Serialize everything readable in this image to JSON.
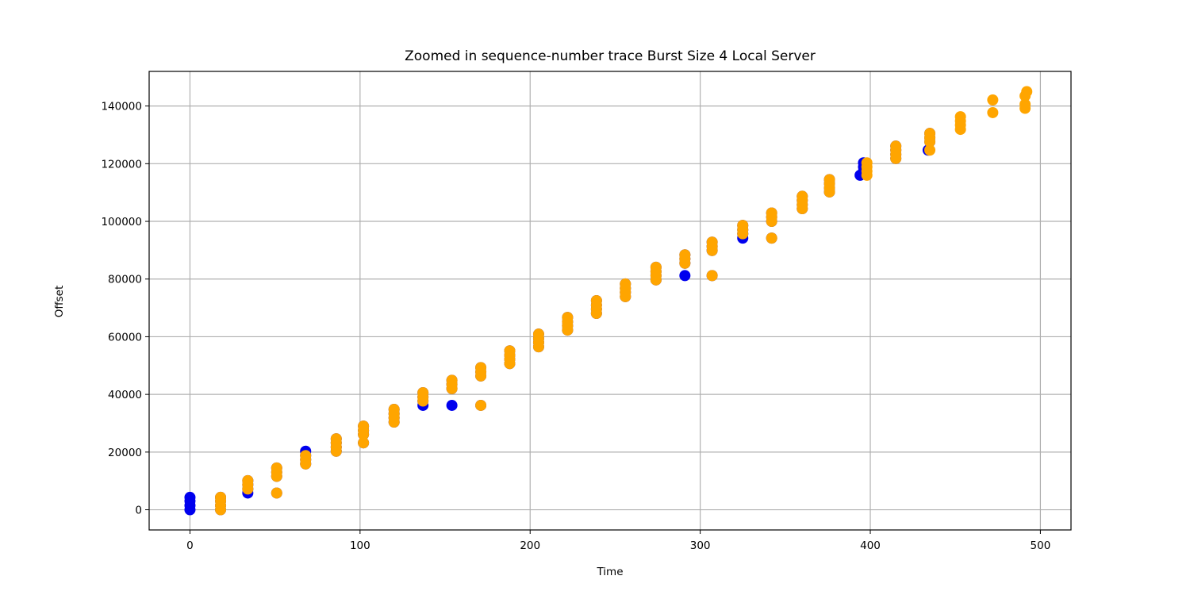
{
  "chart_data": {
    "type": "scatter",
    "title": "Zoomed in sequence-number trace Burst Size 4 Local Server",
    "xlabel": "Time",
    "ylabel": "Offset",
    "xlim": [
      -24,
      518
    ],
    "ylim": [
      -7000,
      152000
    ],
    "xticks": [
      0,
      100,
      200,
      300,
      400,
      500
    ],
    "yticks": [
      0,
      20000,
      40000,
      60000,
      80000,
      100000,
      120000,
      140000
    ],
    "grid": true,
    "legend": false,
    "series": [
      {
        "color": "#0000ee",
        "points": [
          [
            0,
            0
          ],
          [
            0,
            1500
          ],
          [
            0,
            3000
          ],
          [
            0,
            4300
          ],
          [
            18,
            0
          ],
          [
            18,
            1500
          ],
          [
            18,
            3000
          ],
          [
            18,
            4300
          ],
          [
            34,
            5800
          ],
          [
            34,
            7200
          ],
          [
            34,
            8700
          ],
          [
            34,
            10100
          ],
          [
            51,
            11600
          ],
          [
            51,
            13000
          ],
          [
            51,
            14500
          ],
          [
            51,
            5800
          ],
          [
            68,
            15900
          ],
          [
            68,
            17400
          ],
          [
            68,
            18800
          ],
          [
            68,
            20300
          ],
          [
            86,
            20300
          ],
          [
            86,
            21700
          ],
          [
            86,
            23200
          ],
          [
            86,
            24600
          ],
          [
            102,
            23200
          ],
          [
            102,
            26100
          ],
          [
            102,
            27500
          ],
          [
            102,
            29000
          ],
          [
            120,
            30400
          ],
          [
            120,
            31900
          ],
          [
            120,
            33300
          ],
          [
            120,
            34800
          ],
          [
            137,
            36200
          ],
          [
            137,
            37700
          ],
          [
            137,
            39100
          ],
          [
            137,
            40600
          ],
          [
            154,
            36200
          ],
          [
            154,
            42000
          ],
          [
            154,
            43500
          ],
          [
            154,
            44900
          ],
          [
            171,
            36200
          ],
          [
            171,
            46400
          ],
          [
            171,
            47800
          ],
          [
            171,
            49300
          ],
          [
            188,
            50700
          ],
          [
            188,
            52200
          ],
          [
            188,
            53600
          ],
          [
            188,
            55100
          ],
          [
            205,
            56500
          ],
          [
            205,
            58000
          ],
          [
            205,
            59400
          ],
          [
            205,
            60900
          ],
          [
            222,
            62300
          ],
          [
            222,
            63800
          ],
          [
            222,
            65200
          ],
          [
            222,
            66700
          ],
          [
            239,
            68100
          ],
          [
            239,
            69600
          ],
          [
            239,
            71000
          ],
          [
            239,
            72500
          ],
          [
            256,
            73900
          ],
          [
            256,
            75400
          ],
          [
            256,
            76800
          ],
          [
            256,
            78300
          ],
          [
            274,
            79700
          ],
          [
            274,
            81200
          ],
          [
            274,
            82600
          ],
          [
            274,
            84100
          ],
          [
            291,
            81200
          ],
          [
            291,
            85500
          ],
          [
            291,
            87000
          ],
          [
            291,
            88400
          ],
          [
            307,
            81200
          ],
          [
            307,
            89900
          ],
          [
            307,
            91300
          ],
          [
            307,
            92800
          ],
          [
            325,
            94200
          ],
          [
            325,
            95700
          ],
          [
            325,
            97100
          ],
          [
            325,
            98600
          ],
          [
            342,
            94200
          ],
          [
            342,
            100000
          ],
          [
            342,
            101500
          ],
          [
            342,
            102900
          ],
          [
            360,
            104400
          ],
          [
            360,
            105800
          ],
          [
            360,
            107300
          ],
          [
            360,
            108700
          ],
          [
            376,
            110200
          ],
          [
            376,
            111600
          ],
          [
            376,
            113100
          ],
          [
            376,
            114500
          ],
          [
            394,
            116000
          ],
          [
            396,
            117400
          ],
          [
            396,
            118900
          ],
          [
            396,
            120300
          ],
          [
            415,
            121800
          ],
          [
            415,
            123200
          ],
          [
            415,
            124700
          ],
          [
            415,
            126100
          ],
          [
            434,
            124700
          ],
          [
            435,
            127600
          ],
          [
            435,
            129000
          ],
          [
            435,
            130500
          ]
        ]
      },
      {
        "color": "#ffa500",
        "points": [
          [
            18,
            0
          ],
          [
            18,
            1500
          ],
          [
            18,
            3000
          ],
          [
            18,
            4300
          ],
          [
            34,
            7200
          ],
          [
            34,
            8700
          ],
          [
            34,
            10100
          ],
          [
            51,
            5800
          ],
          [
            51,
            11600
          ],
          [
            51,
            13000
          ],
          [
            51,
            14500
          ],
          [
            68,
            15900
          ],
          [
            68,
            17400
          ],
          [
            68,
            18800
          ],
          [
            86,
            20300
          ],
          [
            86,
            21700
          ],
          [
            86,
            23200
          ],
          [
            86,
            24600
          ],
          [
            102,
            23200
          ],
          [
            102,
            26100
          ],
          [
            102,
            27500
          ],
          [
            102,
            29000
          ],
          [
            120,
            30400
          ],
          [
            120,
            31900
          ],
          [
            120,
            33300
          ],
          [
            120,
            34800
          ],
          [
            137,
            37700
          ],
          [
            137,
            39100
          ],
          [
            137,
            40600
          ],
          [
            154,
            42000
          ],
          [
            154,
            43500
          ],
          [
            154,
            44900
          ],
          [
            171,
            36200
          ],
          [
            171,
            46400
          ],
          [
            171,
            47800
          ],
          [
            171,
            49300
          ],
          [
            188,
            50700
          ],
          [
            188,
            52200
          ],
          [
            188,
            53600
          ],
          [
            188,
            55100
          ],
          [
            205,
            56500
          ],
          [
            205,
            58000
          ],
          [
            205,
            59400
          ],
          [
            205,
            60900
          ],
          [
            222,
            62300
          ],
          [
            222,
            63800
          ],
          [
            222,
            65200
          ],
          [
            222,
            66700
          ],
          [
            239,
            68100
          ],
          [
            239,
            69600
          ],
          [
            239,
            71000
          ],
          [
            239,
            72500
          ],
          [
            256,
            73900
          ],
          [
            256,
            75400
          ],
          [
            256,
            76800
          ],
          [
            256,
            78300
          ],
          [
            274,
            79700
          ],
          [
            274,
            81200
          ],
          [
            274,
            82600
          ],
          [
            274,
            84100
          ],
          [
            291,
            85500
          ],
          [
            291,
            87000
          ],
          [
            291,
            88400
          ],
          [
            307,
            81200
          ],
          [
            307,
            89900
          ],
          [
            307,
            91300
          ],
          [
            307,
            92800
          ],
          [
            325,
            95700
          ],
          [
            325,
            97100
          ],
          [
            325,
            98600
          ],
          [
            342,
            94200
          ],
          [
            342,
            100000
          ],
          [
            342,
            101500
          ],
          [
            342,
            102900
          ],
          [
            360,
            104400
          ],
          [
            360,
            105800
          ],
          [
            360,
            107300
          ],
          [
            360,
            108700
          ],
          [
            376,
            110200
          ],
          [
            376,
            111600
          ],
          [
            376,
            113100
          ],
          [
            376,
            114500
          ],
          [
            398,
            116000
          ],
          [
            398,
            117400
          ],
          [
            398,
            118900
          ],
          [
            398,
            120300
          ],
          [
            415,
            121800
          ],
          [
            415,
            123200
          ],
          [
            415,
            124700
          ],
          [
            415,
            126100
          ],
          [
            435,
            124700
          ],
          [
            435,
            127600
          ],
          [
            435,
            129000
          ],
          [
            435,
            130500
          ],
          [
            453,
            131900
          ],
          [
            453,
            133400
          ],
          [
            453,
            134800
          ],
          [
            453,
            136300
          ],
          [
            472,
            137700
          ],
          [
            472,
            142100
          ],
          [
            491,
            139200
          ],
          [
            491,
            140600
          ],
          [
            491,
            143500
          ],
          [
            492,
            145000
          ]
        ]
      }
    ]
  }
}
